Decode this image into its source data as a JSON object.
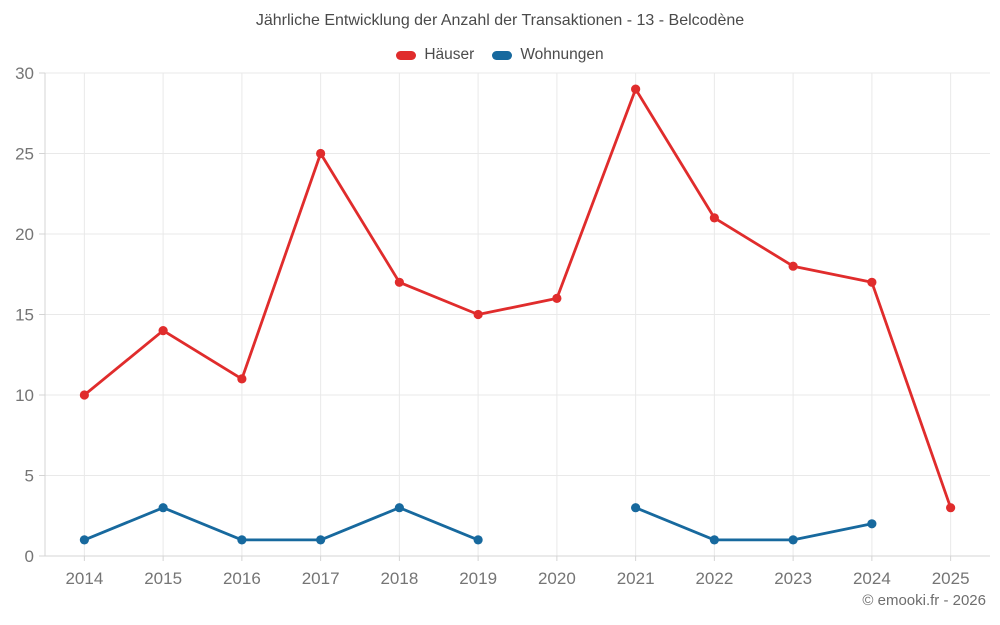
{
  "chart_data": {
    "type": "line",
    "title": "Jährliche Entwicklung der Anzahl der Transaktionen - 13 - Belcodène",
    "categories": [
      "2014",
      "2015",
      "2016",
      "2017",
      "2018",
      "2019",
      "2020",
      "2021",
      "2022",
      "2023",
      "2024",
      "2025"
    ],
    "series": [
      {
        "name": "Häuser",
        "color": "#e02c2c",
        "values": [
          10,
          14,
          11,
          25,
          17,
          15,
          16,
          29,
          21,
          18,
          17,
          3
        ]
      },
      {
        "name": "Wohnungen",
        "color": "#17699e",
        "values": [
          1,
          3,
          1,
          1,
          3,
          1,
          null,
          3,
          1,
          1,
          2,
          null
        ]
      }
    ],
    "xlabel": "",
    "ylabel": "",
    "ylim": [
      0,
      30
    ],
    "yticks": [
      0,
      5,
      10,
      15,
      20,
      25,
      30
    ],
    "grid": true,
    "legend_position": "top",
    "grid_color": "#e9e9e9",
    "axis_color": "#d4d4d4",
    "tick_label_color": "#757575"
  },
  "footer": {
    "text": "© emooki.fr - 2026"
  }
}
